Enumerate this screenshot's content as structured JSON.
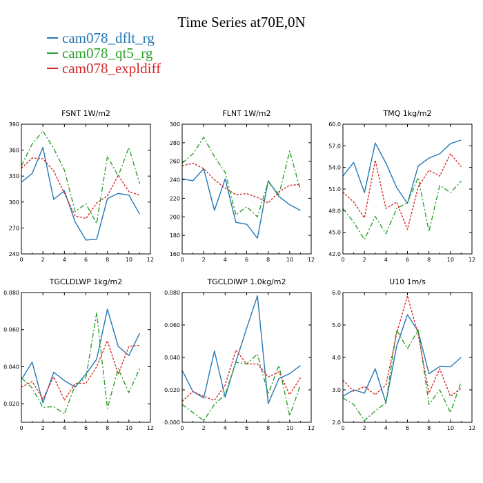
{
  "title": "Time Series at70E,0N",
  "legend": [
    {
      "label": "cam078_dflt_rg",
      "color": "#2277b4"
    },
    {
      "label": "cam078_qt5_rg",
      "color": "#2ca02c"
    },
    {
      "label": "cam078_expldiff",
      "color": "#d62728"
    }
  ],
  "chart_data": [
    {
      "type": "line",
      "title": "FSNT   1W/m2",
      "x": [
        0,
        1,
        2,
        3,
        4,
        5,
        6,
        7,
        8,
        9,
        10,
        11
      ],
      "xlim": [
        0,
        12
      ],
      "xticks": [
        0,
        2,
        4,
        6,
        8,
        10,
        12
      ],
      "ylim": [
        240,
        390
      ],
      "yticks": [
        "240",
        "270",
        "300",
        "330",
        "360",
        "390"
      ],
      "series": [
        {
          "name": "cam078_dflt_rg",
          "values": [
            323,
            333,
            363,
            303,
            313,
            277,
            256,
            257,
            304,
            310,
            308,
            286
          ]
        },
        {
          "name": "cam078_qt5_rg",
          "values": [
            342,
            367,
            382,
            362,
            337,
            289,
            298,
            275,
            353,
            330,
            363,
            321
          ]
        },
        {
          "name": "cam078_expldiff",
          "values": [
            339,
            351,
            350,
            336,
            310,
            284,
            281,
            299,
            307,
            331,
            312,
            308
          ]
        }
      ]
    },
    {
      "type": "line",
      "title": "FLNT   1W/m2",
      "x": [
        0,
        1,
        2,
        3,
        4,
        5,
        6,
        7,
        8,
        9,
        10,
        11
      ],
      "xlim": [
        0,
        12
      ],
      "xticks": [
        0,
        2,
        4,
        6,
        8,
        10,
        12
      ],
      "ylim": [
        160,
        300
      ],
      "yticks": [
        "160",
        "180",
        "200",
        "220",
        "240",
        "260",
        "280",
        "300"
      ],
      "series": [
        {
          "name": "cam078_dflt_rg",
          "values": [
            241,
            239,
            252,
            207,
            241,
            194,
            192,
            177,
            239,
            222,
            213,
            207
          ]
        },
        {
          "name": "cam078_qt5_rg",
          "values": [
            258,
            268,
            286,
            265,
            248,
            202,
            211,
            200,
            238,
            224,
            271,
            229
          ]
        },
        {
          "name": "cam078_expldiff",
          "values": [
            255,
            258,
            252,
            240,
            231,
            224,
            225,
            221,
            215,
            227,
            234,
            235
          ]
        }
      ]
    },
    {
      "type": "line",
      "title": "TMQ   1kg/m2",
      "x": [
        0,
        1,
        2,
        3,
        4,
        5,
        6,
        7,
        8,
        9,
        10,
        11
      ],
      "xlim": [
        0,
        12
      ],
      "xticks": [
        0,
        2,
        4,
        6,
        8,
        10,
        12
      ],
      "ylim": [
        42,
        60
      ],
      "yticks": [
        "42.0",
        "45.0",
        "48.0",
        "51.0",
        "54.0",
        "57.0",
        "60.0"
      ],
      "series": [
        {
          "name": "cam078_dflt_rg",
          "values": [
            52.8,
            54.7,
            50.5,
            57.4,
            54.6,
            51.2,
            49.0,
            54.2,
            55.3,
            55.9,
            57.3,
            57.8
          ]
        },
        {
          "name": "cam078_qt5_rg",
          "values": [
            48.3,
            46.4,
            44.0,
            47.2,
            44.8,
            48.3,
            49.1,
            52.6,
            45.1,
            51.5,
            50.5,
            52.1
          ]
        },
        {
          "name": "cam078_expldiff",
          "values": [
            50.6,
            49.2,
            47.0,
            55.0,
            48.3,
            49.2,
            45.4,
            51.3,
            53.6,
            52.8,
            55.9,
            54.1
          ]
        }
      ]
    },
    {
      "type": "line",
      "title": "TGCLDLWP   1kg/m2",
      "x": [
        0,
        1,
        2,
        3,
        4,
        5,
        6,
        7,
        8,
        9,
        10,
        11
      ],
      "xlim": [
        0,
        12
      ],
      "xticks": [
        0,
        2,
        4,
        6,
        8,
        10,
        12
      ],
      "ylim": [
        0.01,
        0.08
      ],
      "yticks": [
        "0.020",
        "0.040",
        "0.060",
        "0.080"
      ],
      "series": [
        {
          "name": "cam078_dflt_rg",
          "values": [
            0.033,
            0.0425,
            0.0205,
            0.037,
            0.0325,
            0.029,
            0.036,
            0.044,
            0.071,
            0.051,
            0.046,
            0.058
          ]
        },
        {
          "name": "cam078_qt5_rg",
          "values": [
            0.034,
            0.0285,
            0.018,
            0.0185,
            0.0145,
            0.03,
            0.034,
            0.069,
            0.0175,
            0.039,
            0.026,
            0.039
          ]
        },
        {
          "name": "cam078_expldiff",
          "values": [
            0.029,
            0.032,
            0.0225,
            0.0345,
            0.022,
            0.031,
            0.031,
            0.04,
            0.054,
            0.036,
            0.051,
            0.0515
          ]
        }
      ]
    },
    {
      "type": "line",
      "title": "TGCLDIWP   1.0kg/m2",
      "x": [
        0,
        1,
        2,
        3,
        4,
        5,
        6,
        7,
        8,
        9,
        10,
        11
      ],
      "xlim": [
        0,
        12
      ],
      "xticks": [
        0,
        2,
        4,
        6,
        8,
        10,
        12
      ],
      "ylim": [
        0,
        0.08
      ],
      "yticks": [
        "0.000",
        "0.020",
        "0.040",
        "0.060",
        "0.080"
      ],
      "series": [
        {
          "name": "cam078_dflt_rg",
          "values": [
            0.032,
            0.019,
            0.015,
            0.044,
            0.0155,
            0.0375,
            0.058,
            0.078,
            0.0115,
            0.027,
            0.03,
            0.035
          ]
        },
        {
          "name": "cam078_qt5_rg",
          "values": [
            0.011,
            0.006,
            0.001,
            0.011,
            0.017,
            0.037,
            0.036,
            0.042,
            0.0175,
            0.035,
            0.004,
            0.023
          ]
        },
        {
          "name": "cam078_expldiff",
          "values": [
            0.013,
            0.019,
            0.016,
            0.0135,
            0.023,
            0.0445,
            0.036,
            0.036,
            0.028,
            0.031,
            0.017,
            0.0275
          ]
        }
      ]
    },
    {
      "type": "line",
      "title": "U10   1m/s",
      "x": [
        0,
        1,
        2,
        3,
        4,
        5,
        6,
        7,
        8,
        9,
        10,
        11
      ],
      "xlim": [
        0,
        12
      ],
      "xticks": [
        0,
        2,
        4,
        6,
        8,
        10,
        12
      ],
      "ylim": [
        2,
        6
      ],
      "yticks": [
        "2.0",
        "3.0",
        "4.0",
        "5.0",
        "6.0"
      ],
      "series": [
        {
          "name": "cam078_dflt_rg",
          "values": [
            2.8,
            3.0,
            2.9,
            3.65,
            2.6,
            4.35,
            5.32,
            4.8,
            3.5,
            3.72,
            3.71,
            4.0
          ]
        },
        {
          "name": "cam078_qt5_rg",
          "values": [
            2.75,
            2.55,
            2.05,
            2.35,
            2.6,
            4.85,
            4.27,
            4.85,
            2.55,
            3.0,
            2.3,
            3.25
          ]
        },
        {
          "name": "cam078_expldiff",
          "values": [
            3.3,
            2.95,
            3.1,
            2.85,
            3.15,
            4.75,
            5.9,
            4.7,
            2.9,
            3.65,
            2.8,
            3.05
          ]
        }
      ]
    }
  ]
}
